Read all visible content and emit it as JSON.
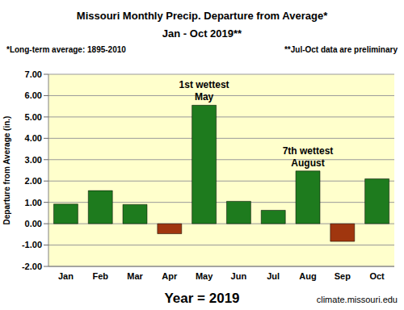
{
  "chart_data": {
    "type": "bar",
    "title": "Missouri Monthly Precip. Departure from Average*",
    "subtitle": "Jan - Oct 2019**",
    "notes": [
      "*Long-term average: 1895-2010",
      "**Jul-Oct data are preliminary"
    ],
    "x_label": "Year = 2019",
    "y_label": "Departure from Average (in.)",
    "source": "climate.missouri.edu",
    "categories": [
      "Jan",
      "Feb",
      "Mar",
      "Apr",
      "May",
      "Jun",
      "Jul",
      "Aug",
      "Sep",
      "Oct"
    ],
    "values": [
      0.92,
      1.55,
      0.9,
      -0.47,
      5.55,
      1.05,
      0.63,
      2.47,
      -0.83,
      2.1
    ],
    "colors": [
      "#1e7b1e",
      "#1e7b1e",
      "#1e7b1e",
      "#a0360e",
      "#1e7b1e",
      "#1e7b1e",
      "#1e7b1e",
      "#1e7b1e",
      "#a0360e",
      "#1e7b1e"
    ],
    "ylim": [
      -2,
      7
    ],
    "yticks": [
      {
        "value": -2,
        "label": "-2.00"
      },
      {
        "value": -1,
        "label": "-1.00"
      },
      {
        "value": 0,
        "label": "0.00"
      },
      {
        "value": 1,
        "label": "1.00"
      },
      {
        "value": 2,
        "label": "2.00"
      },
      {
        "value": 3,
        "label": "3.00"
      },
      {
        "value": 4,
        "label": "4.00"
      },
      {
        "value": 5,
        "label": "5.00"
      },
      {
        "value": 6,
        "label": "6.00"
      },
      {
        "value": 7,
        "label": "7.00"
      }
    ],
    "grid": true,
    "annotations": [
      {
        "category": "May",
        "lines": [
          "1st wettest",
          "May"
        ]
      },
      {
        "category": "Aug",
        "lines": [
          "7th wettest",
          "August"
        ]
      }
    ]
  }
}
